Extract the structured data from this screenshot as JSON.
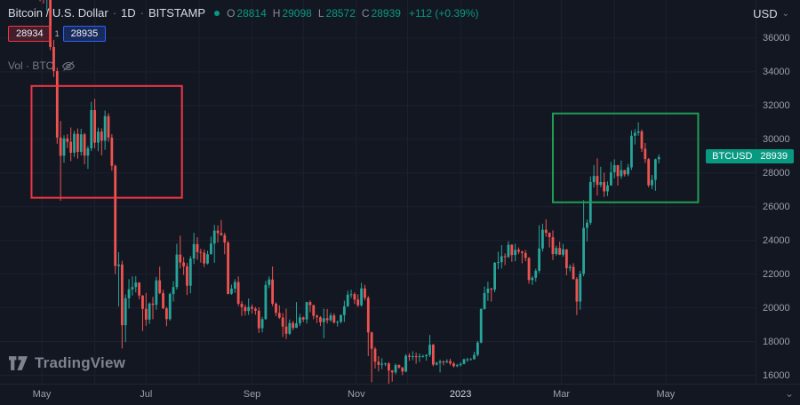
{
  "colors": {
    "background": "#131722",
    "up": "#26a69a",
    "down": "#ef5350",
    "accent_green": "#089981",
    "sell_red": "#f23645",
    "buy_blue": "#2962ff",
    "annotation_red": "#f23645",
    "annotation_green": "#1f9d55",
    "badge_bg": "#089981",
    "text_primary": "#d8dae0",
    "text_secondary": "#787b86"
  },
  "header": {
    "title": "Bitcoin / U.S. Dollar",
    "separator": "·",
    "interval": "1D",
    "exchange": "BITSTAMP",
    "ohlc": {
      "open_label": "O",
      "open": "28814",
      "high_label": "H",
      "high": "29098",
      "low_label": "L",
      "low": "28572",
      "close_label": "C",
      "close": "28939",
      "change": "+112 (+0.39%)"
    },
    "bid": "28934",
    "spread": "1",
    "ask": "28935",
    "volume_label": "Vol · BTC"
  },
  "top_right": {
    "currency": "USD",
    "caret": "⌄"
  },
  "price_badge": {
    "symbol": "BTCUSD",
    "price": "28939"
  },
  "bottom_right": {
    "caret": "⌄"
  },
  "watermark": {
    "text": "TradingView"
  },
  "time_axis": {
    "ticks": [
      {
        "label": "May",
        "day": 3
      },
      {
        "label": "Jul",
        "day": 64
      },
      {
        "label": "Sep",
        "day": 126
      },
      {
        "label": "Nov",
        "day": 187
      },
      {
        "label": "2023",
        "day": 248,
        "year": true
      },
      {
        "label": "Mar",
        "day": 307
      },
      {
        "label": "May",
        "day": 368
      }
    ],
    "grid_days": [
      3,
      34,
      64,
      95,
      126,
      156,
      187,
      217,
      248,
      279,
      307,
      338,
      368
    ]
  },
  "chart_data": {
    "type": "candlestick",
    "title": "Bitcoin / U.S. Dollar",
    "symbol": "BTCUSD",
    "exchange": "BITSTAMP",
    "interval": "1D",
    "x_unit": "days since 2022-04-28 (candles aggregated ~2 days, values in USD)",
    "price_axis": {
      "min": 15500,
      "max": 38260,
      "ticks": [
        16000,
        18000,
        20000,
        22000,
        24000,
        26000,
        28000,
        30000,
        32000,
        34000,
        36000
      ]
    },
    "last_price": 28939,
    "colors": {
      "up": "#26a69a",
      "down": "#ef5350"
    },
    "annotations": [
      {
        "type": "rect",
        "label": "may-june-2022-consolidation",
        "color": "#f23645",
        "day_start": -3,
        "day_end": 85,
        "price_low": 26530,
        "price_high": 33160
      },
      {
        "type": "rect",
        "label": "mar-apr-2023-consolidation",
        "color": "#1f9d55",
        "day_start": 302,
        "day_end": 387,
        "price_low": 26260,
        "price_high": 31530
      }
    ],
    "candles": [
      [
        0,
        39470,
        40290,
        38870,
        39770
      ],
      [
        2,
        39770,
        39920,
        38180,
        38600
      ],
      [
        4,
        38600,
        39170,
        38050,
        38520
      ],
      [
        6,
        38520,
        39850,
        37600,
        39700
      ],
      [
        8,
        39700,
        39840,
        35280,
        35470
      ],
      [
        10,
        35470,
        35900,
        33700,
        34040
      ],
      [
        12,
        34040,
        34240,
        29730,
        30100
      ],
      [
        14,
        30100,
        31080,
        26350,
        29020
      ],
      [
        16,
        29020,
        30240,
        28600,
        30050
      ],
      [
        18,
        30050,
        30300,
        29480,
        29850
      ],
      [
        20,
        29850,
        30700,
        28700,
        29200
      ],
      [
        22,
        29200,
        30500,
        28950,
        30320
      ],
      [
        24,
        30320,
        30640,
        28850,
        29250
      ],
      [
        26,
        29250,
        30620,
        29030,
        30290
      ],
      [
        28,
        30290,
        30380,
        28520,
        29030
      ],
      [
        30,
        29030,
        29600,
        28240,
        29460
      ],
      [
        32,
        29460,
        32220,
        29300,
        31730
      ],
      [
        34,
        31730,
        32400,
        29450,
        29800
      ],
      [
        36,
        29800,
        30690,
        29290,
        30450
      ],
      [
        38,
        30450,
        30650,
        29040,
        29910
      ],
      [
        40,
        29910,
        31700,
        29370,
        31370
      ],
      [
        42,
        31370,
        31550,
        29850,
        30100
      ],
      [
        44,
        30100,
        30300,
        28130,
        28420
      ],
      [
        46,
        28420,
        28500,
        22000,
        22480
      ],
      [
        48,
        22480,
        23300,
        20080,
        22570
      ],
      [
        50,
        22570,
        22790,
        17590,
        18970
      ],
      [
        52,
        18970,
        20790,
        17960,
        20570
      ],
      [
        54,
        20570,
        21700,
        19950,
        21100
      ],
      [
        56,
        21100,
        21870,
        20730,
        21230
      ],
      [
        58,
        21230,
        21880,
        20910,
        21500
      ],
      [
        60,
        21500,
        21520,
        20510,
        20730
      ],
      [
        62,
        20730,
        20750,
        18630,
        19940
      ],
      [
        64,
        19940,
        20880,
        18930,
        19300
      ],
      [
        66,
        19300,
        20320,
        19050,
        20250
      ],
      [
        68,
        20250,
        20650,
        19320,
        20180
      ],
      [
        70,
        20180,
        21840,
        19880,
        21630
      ],
      [
        72,
        21630,
        22450,
        20810,
        20870
      ],
      [
        74,
        20870,
        21070,
        19920,
        19970
      ],
      [
        76,
        19970,
        20060,
        18910,
        19330
      ],
      [
        78,
        19330,
        20900,
        19240,
        20820
      ],
      [
        80,
        20820,
        21580,
        20370,
        21230
      ],
      [
        82,
        21230,
        23800,
        21080,
        23160
      ],
      [
        84,
        23160,
        24280,
        22340,
        22690
      ],
      [
        86,
        22690,
        23010,
        21950,
        22460
      ],
      [
        88,
        22460,
        22660,
        20760,
        21310
      ],
      [
        90,
        21310,
        23080,
        20860,
        22930
      ],
      [
        92,
        22930,
        24450,
        22600,
        23780
      ],
      [
        94,
        23780,
        24190,
        22850,
        23310
      ],
      [
        96,
        23310,
        23510,
        22680,
        23270
      ],
      [
        98,
        23270,
        23460,
        22420,
        22630
      ],
      [
        100,
        22630,
        23390,
        22570,
        23180
      ],
      [
        102,
        23180,
        24230,
        23170,
        23810
      ],
      [
        104,
        23810,
        24920,
        22670,
        24580
      ],
      [
        106,
        24580,
        24890,
        23870,
        24430
      ],
      [
        108,
        24430,
        25210,
        24280,
        24310
      ],
      [
        110,
        24310,
        24450,
        23180,
        23870
      ],
      [
        112,
        23870,
        23960,
        20790,
        20830
      ],
      [
        114,
        20830,
        21380,
        20770,
        21140
      ],
      [
        116,
        21140,
        21700,
        20890,
        21530
      ],
      [
        118,
        21530,
        21860,
        20110,
        20240
      ],
      [
        120,
        20240,
        20400,
        19520,
        20040
      ],
      [
        122,
        20040,
        20180,
        19550,
        19810
      ],
      [
        124,
        19810,
        20550,
        19580,
        20050
      ],
      [
        126,
        20050,
        20200,
        19660,
        19950
      ],
      [
        128,
        19950,
        20050,
        19590,
        19830
      ],
      [
        130,
        19830,
        20030,
        18510,
        18790
      ],
      [
        132,
        18790,
        19460,
        18540,
        19330
      ],
      [
        134,
        19330,
        21600,
        19290,
        21360
      ],
      [
        136,
        21360,
        21860,
        21170,
        21680
      ],
      [
        138,
        21680,
        22450,
        20100,
        20240
      ],
      [
        140,
        20240,
        20330,
        19510,
        19700
      ],
      [
        142,
        19700,
        20150,
        19340,
        19420
      ],
      [
        144,
        19420,
        19690,
        18270,
        18890
      ],
      [
        146,
        18890,
        19950,
        18150,
        18460
      ],
      [
        148,
        18460,
        19310,
        18390,
        19100
      ],
      [
        150,
        19100,
        19220,
        18680,
        18810
      ],
      [
        152,
        18810,
        20340,
        18800,
        19080
      ],
      [
        154,
        19080,
        19640,
        18920,
        19430
      ],
      [
        156,
        19430,
        19480,
        19160,
        19310
      ],
      [
        158,
        19310,
        20360,
        19060,
        20340
      ],
      [
        160,
        20340,
        20440,
        19740,
        20160
      ],
      [
        162,
        20160,
        20180,
        19320,
        19530
      ],
      [
        164,
        19530,
        19600,
        19100,
        19440
      ],
      [
        166,
        19440,
        19510,
        18920,
        19150
      ],
      [
        168,
        19150,
        19950,
        18190,
        19380
      ],
      [
        170,
        19380,
        19930,
        19070,
        19270
      ],
      [
        172,
        19270,
        19700,
        19170,
        19550
      ],
      [
        174,
        19550,
        19670,
        19060,
        19130
      ],
      [
        176,
        19130,
        19250,
        18890,
        19170
      ],
      [
        178,
        19170,
        19610,
        19080,
        19570
      ],
      [
        180,
        19570,
        20420,
        19160,
        20090
      ],
      [
        182,
        20090,
        21020,
        20050,
        20780
      ],
      [
        184,
        20780,
        21080,
        20580,
        20810
      ],
      [
        186,
        20810,
        20920,
        20230,
        20490
      ],
      [
        188,
        20490,
        20800,
        20050,
        20150
      ],
      [
        190,
        20150,
        21480,
        20070,
        21150
      ],
      [
        192,
        21150,
        21360,
        20440,
        20590
      ],
      [
        194,
        20590,
        20700,
        17140,
        18540
      ],
      [
        196,
        18540,
        18590,
        15590,
        17570
      ],
      [
        198,
        17570,
        17680,
        16400,
        16800
      ],
      [
        200,
        16800,
        17130,
        16230,
        16620
      ],
      [
        202,
        16620,
        17010,
        16360,
        16690
      ],
      [
        204,
        16690,
        16750,
        16540,
        16700
      ],
      [
        206,
        16700,
        16780,
        15480,
        16280
      ],
      [
        208,
        16280,
        16310,
        15620,
        16170
      ],
      [
        210,
        16170,
        16700,
        16060,
        16600
      ],
      [
        212,
        16600,
        16650,
        16390,
        16460
      ],
      [
        214,
        16460,
        16490,
        16010,
        16220
      ],
      [
        216,
        16220,
        17250,
        16180,
        17160
      ],
      [
        218,
        17160,
        17310,
        16860,
        17090
      ],
      [
        220,
        17090,
        17420,
        16890,
        17130
      ],
      [
        222,
        17130,
        17350,
        16680,
        17090
      ],
      [
        224,
        17090,
        17290,
        16790,
        17130
      ],
      [
        226,
        17130,
        17230,
        17050,
        17130
      ],
      [
        228,
        17130,
        17240,
        16870,
        17210
      ],
      [
        230,
        17210,
        18390,
        17080,
        17810
      ],
      [
        232,
        17810,
        17860,
        16530,
        16630
      ],
      [
        234,
        16630,
        16800,
        16580,
        16740
      ],
      [
        236,
        16740,
        16930,
        16170,
        16820
      ],
      [
        238,
        16820,
        16870,
        16590,
        16780
      ],
      [
        240,
        16780,
        16950,
        16710,
        16840
      ],
      [
        242,
        16840,
        16980,
        16590,
        16700
      ],
      [
        244,
        16700,
        16790,
        16460,
        16540
      ],
      [
        246,
        16540,
        16680,
        16480,
        16600
      ],
      [
        248,
        16600,
        16770,
        16520,
        16670
      ],
      [
        250,
        16670,
        16990,
        16650,
        16950
      ],
      [
        252,
        16950,
        17040,
        16790,
        16950
      ],
      [
        254,
        16950,
        17030,
        16920,
        16950
      ],
      [
        256,
        16950,
        17390,
        16940,
        17210
      ],
      [
        258,
        17210,
        18040,
        17120,
        17940
      ],
      [
        260,
        17940,
        19970,
        17890,
        19930
      ],
      [
        262,
        19930,
        21260,
        19890,
        20880
      ],
      [
        264,
        20880,
        21550,
        20410,
        21140
      ],
      [
        266,
        21140,
        21190,
        20370,
        21080
      ],
      [
        268,
        21080,
        22720,
        20930,
        22670
      ],
      [
        270,
        22670,
        23330,
        22290,
        22710
      ],
      [
        272,
        22710,
        23720,
        22330,
        23060
      ],
      [
        274,
        23060,
        23230,
        22530,
        23020
      ],
      [
        276,
        23020,
        23950,
        22950,
        23740
      ],
      [
        278,
        23740,
        23780,
        22730,
        23130
      ],
      [
        280,
        23130,
        23800,
        22760,
        23440
      ],
      [
        282,
        23440,
        23580,
        23190,
        23330
      ],
      [
        284,
        23330,
        23400,
        22640,
        23250
      ],
      [
        286,
        23250,
        23430,
        22760,
        22960
      ],
      [
        288,
        22960,
        23010,
        21430,
        21650
      ],
      [
        290,
        21650,
        21890,
        21350,
        21780
      ],
      [
        292,
        21780,
        22320,
        21550,
        22200
      ],
      [
        294,
        22200,
        24900,
        22070,
        23520
      ],
      [
        296,
        23520,
        24990,
        23340,
        24630
      ],
      [
        298,
        24630,
        25250,
        24220,
        24450
      ],
      [
        300,
        24450,
        24480,
        23580,
        24190
      ],
      [
        302,
        24190,
        24600,
        22840,
        23190
      ],
      [
        304,
        23190,
        23690,
        23090,
        23550
      ],
      [
        306,
        23550,
        23920,
        23130,
        23150
      ],
      [
        308,
        23150,
        23790,
        23030,
        23470
      ],
      [
        310,
        23470,
        23480,
        21930,
        22350
      ],
      [
        312,
        22350,
        22570,
        22160,
        22430
      ],
      [
        314,
        22430,
        22650,
        21660,
        21710
      ],
      [
        316,
        21710,
        21820,
        19570,
        20370
      ],
      [
        318,
        20370,
        22200,
        19890,
        22020
      ],
      [
        320,
        22020,
        26390,
        21870,
        24740
      ],
      [
        322,
        24740,
        25240,
        23940,
        25050
      ],
      [
        324,
        25050,
        27800,
        24920,
        27460
      ],
      [
        326,
        27460,
        28470,
        27130,
        27820
      ],
      [
        328,
        27820,
        28870,
        26660,
        27290
      ],
      [
        330,
        27290,
        28370,
        27150,
        27460
      ],
      [
        332,
        27460,
        28020,
        26580,
        26910
      ],
      [
        334,
        26910,
        27500,
        26630,
        27260
      ],
      [
        336,
        27260,
        28650,
        27240,
        28040
      ],
      [
        338,
        28040,
        28810,
        27680,
        28460
      ],
      [
        340,
        28460,
        28480,
        27250,
        27810
      ],
      [
        342,
        27810,
        28740,
        27660,
        28170
      ],
      [
        344,
        28170,
        28180,
        27790,
        27920
      ],
      [
        346,
        27920,
        28540,
        27810,
        28330
      ],
      [
        348,
        28330,
        30520,
        28180,
        30210
      ],
      [
        350,
        30210,
        30600,
        29690,
        30380
      ],
      [
        352,
        30380,
        31000,
        30210,
        30470
      ],
      [
        354,
        30470,
        30580,
        29250,
        29440
      ],
      [
        356,
        29440,
        29780,
        28590,
        28820
      ],
      [
        358,
        28820,
        28890,
        27150,
        27270
      ],
      [
        360,
        27270,
        27880,
        27040,
        27590
      ],
      [
        362,
        27590,
        28850,
        26940,
        28814
      ],
      [
        364,
        28814,
        29098,
        28572,
        28939
      ]
    ]
  }
}
